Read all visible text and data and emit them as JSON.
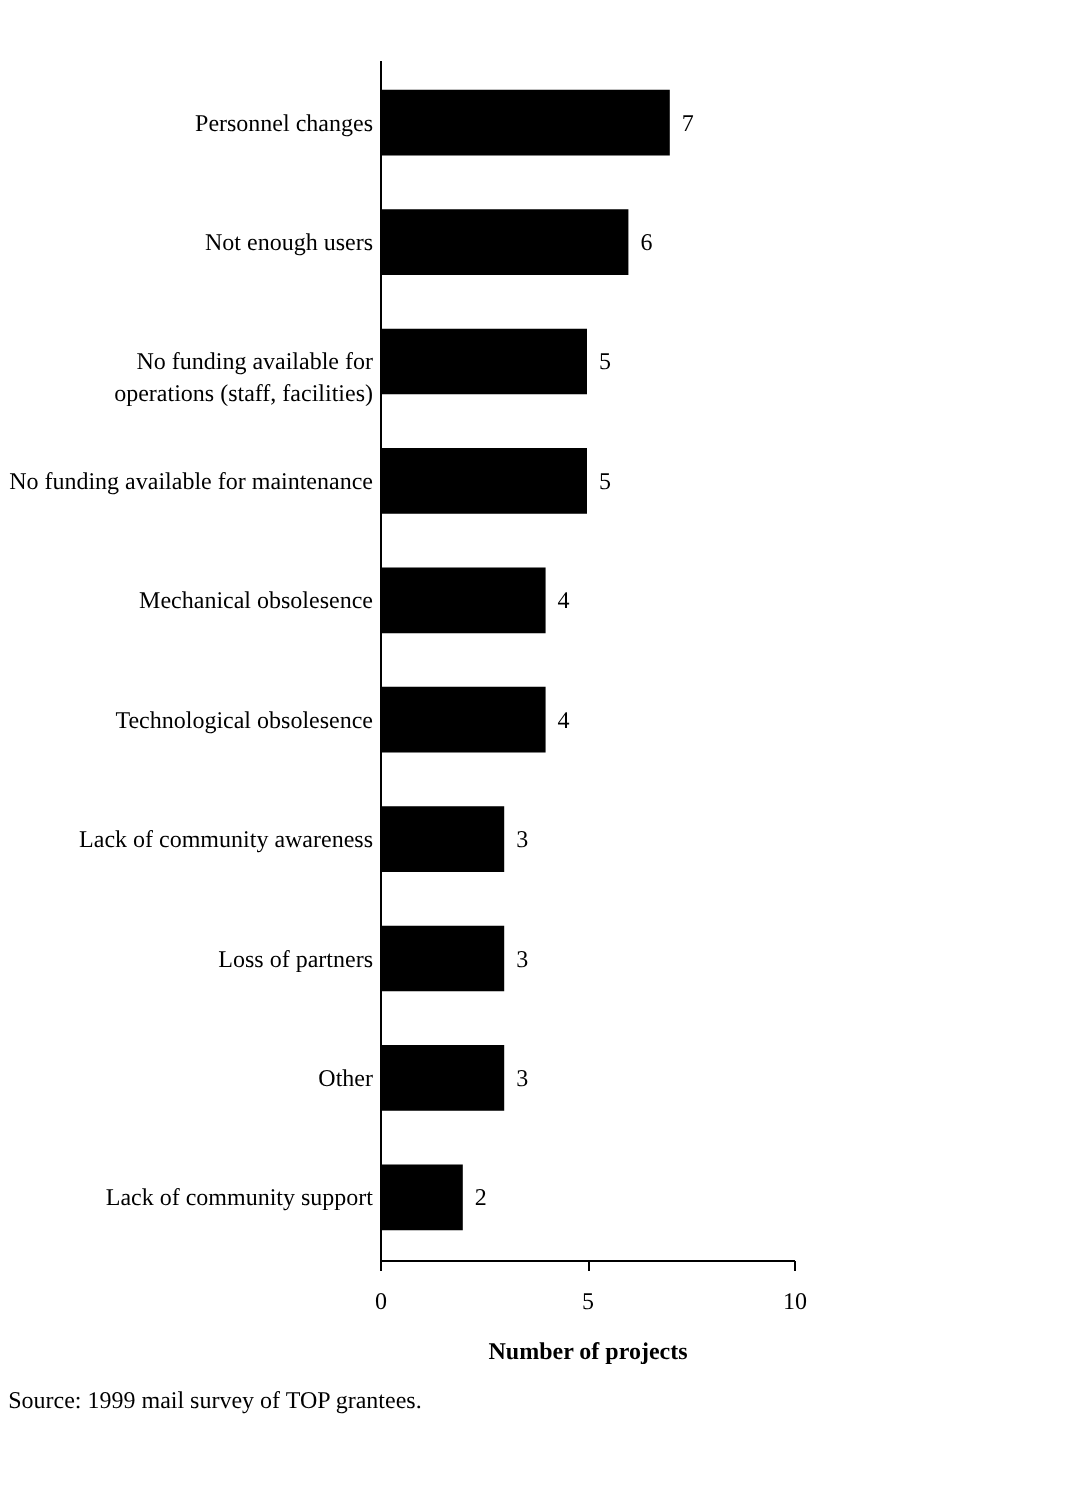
{
  "chart_data": {
    "type": "bar",
    "orientation": "horizontal",
    "xlabel": "Number of projects",
    "categories": [
      "Personnel changes",
      "Not enough users",
      "No funding available for\noperations (staff, facilities)",
      "No funding available for maintenance",
      "Mechanical obsolesence",
      "Technological obsolesence",
      "Lack of community awareness",
      "Loss of partners",
      "Other",
      "Lack of community support"
    ],
    "values": [
      7,
      6,
      5,
      5,
      4,
      4,
      3,
      3,
      3,
      2
    ],
    "color": "#000000",
    "xlim": [
      0,
      10
    ],
    "xticks": [
      0,
      5,
      10
    ],
    "data_labels": true,
    "grid": false,
    "annotations": [
      "Source:  1999 mail survey of TOP grantees."
    ]
  }
}
